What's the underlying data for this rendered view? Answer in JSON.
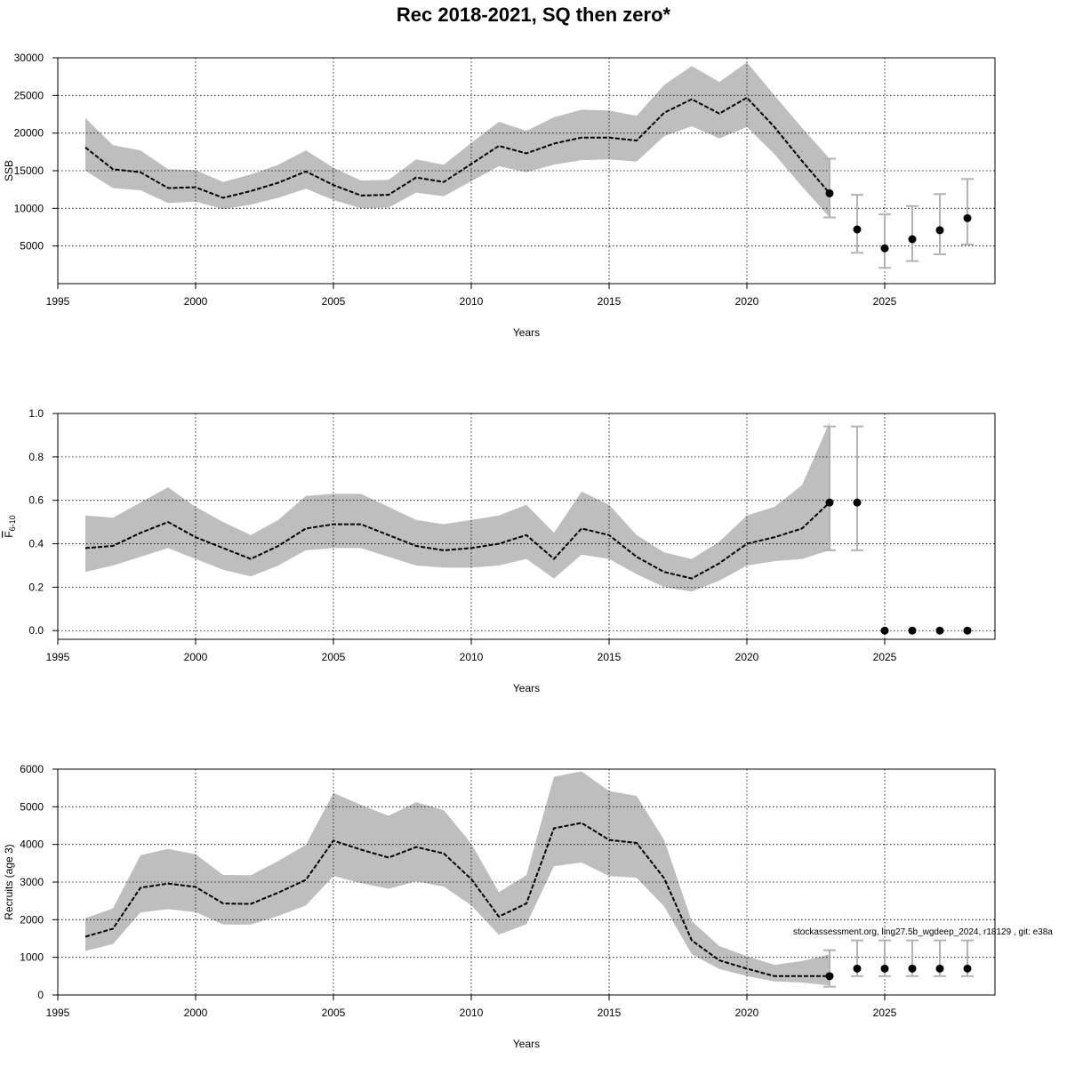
{
  "title": "Rec 2018-2021, SQ then zero*",
  "footnote": "stockassessment.org, ling27.5b_wgdeep_2024, r18129 , git: e38a",
  "colors": {
    "band": "#bebebe",
    "line": "#000000",
    "grid": "#000000",
    "errorbar": "#b3b3b3",
    "point": "#000000"
  },
  "chart_data": [
    {
      "type": "line",
      "ylabel": "SSB",
      "xlabel": "Years",
      "xlim": [
        1995,
        2029
      ],
      "ylim": [
        0,
        30000
      ],
      "xticks": [
        1995,
        2000,
        2005,
        2010,
        2015,
        2020,
        2025
      ],
      "yticks": [
        5000,
        10000,
        15000,
        20000,
        25000,
        30000
      ],
      "grid": true,
      "years": [
        1996,
        1997,
        1998,
        1999,
        2000,
        2001,
        2002,
        2003,
        2004,
        2005,
        2006,
        2007,
        2008,
        2009,
        2010,
        2011,
        2012,
        2013,
        2014,
        2015,
        2016,
        2017,
        2018,
        2019,
        2020,
        2021,
        2022,
        2023
      ],
      "estimate": [
        18100,
        15200,
        14800,
        12700,
        12800,
        11400,
        12300,
        13400,
        14900,
        13100,
        11700,
        11800,
        14100,
        13500,
        15900,
        18300,
        17300,
        18600,
        19400,
        19400,
        19000,
        22700,
        24500,
        22600,
        24700,
        20800,
        16300,
        12000
      ],
      "lower": [
        15000,
        12700,
        12400,
        10700,
        10900,
        9900,
        10500,
        11400,
        12600,
        11100,
        10000,
        10100,
        12100,
        11600,
        13600,
        15600,
        14800,
        15800,
        16400,
        16500,
        16200,
        19600,
        20900,
        19300,
        20800,
        17200,
        12900,
        8800
      ],
      "upper": [
        22000,
        18400,
        17700,
        15200,
        15100,
        13500,
        14500,
        15800,
        17700,
        15400,
        13700,
        13800,
        16500,
        15800,
        18700,
        21500,
        20300,
        22100,
        23100,
        23000,
        22300,
        26400,
        28900,
        26800,
        29400,
        25000,
        20700,
        16600
      ],
      "forecast": {
        "years": [
          2023,
          2024,
          2025,
          2026,
          2027,
          2028
        ],
        "median": [
          12000,
          7200,
          4700,
          5900,
          7100,
          8700
        ],
        "lower": [
          8800,
          4100,
          2100,
          3000,
          3900,
          5200
        ],
        "upper": [
          16600,
          11800,
          9200,
          10300,
          11900,
          13900
        ]
      }
    },
    {
      "type": "line",
      "ylabel_main": "F",
      "ylabel_sub": "6-10",
      "xlabel": "Years",
      "xlim": [
        1995,
        2029
      ],
      "ylim": [
        -0.04,
        1.0
      ],
      "xticks": [
        1995,
        2000,
        2005,
        2010,
        2015,
        2020,
        2025
      ],
      "yticks": [
        0.0,
        0.2,
        0.4,
        0.6,
        0.8,
        1.0
      ],
      "ytick_labels": [
        "0.0",
        "0.2",
        "0.4",
        "0.6",
        "0.8",
        "1.0"
      ],
      "grid": true,
      "years": [
        1996,
        1997,
        1998,
        1999,
        2000,
        2001,
        2002,
        2003,
        2004,
        2005,
        2006,
        2007,
        2008,
        2009,
        2010,
        2011,
        2012,
        2013,
        2014,
        2015,
        2016,
        2017,
        2018,
        2019,
        2020,
        2021,
        2022,
        2023
      ],
      "estimate": [
        0.38,
        0.39,
        0.45,
        0.5,
        0.43,
        0.38,
        0.33,
        0.39,
        0.47,
        0.49,
        0.49,
        0.44,
        0.39,
        0.37,
        0.38,
        0.4,
        0.44,
        0.33,
        0.47,
        0.44,
        0.34,
        0.27,
        0.24,
        0.31,
        0.4,
        0.43,
        0.47,
        0.59
      ],
      "lower": [
        0.27,
        0.3,
        0.34,
        0.38,
        0.33,
        0.28,
        0.25,
        0.3,
        0.37,
        0.38,
        0.38,
        0.34,
        0.3,
        0.29,
        0.29,
        0.3,
        0.33,
        0.24,
        0.35,
        0.33,
        0.26,
        0.2,
        0.18,
        0.23,
        0.3,
        0.32,
        0.33,
        0.37
      ],
      "upper": [
        0.53,
        0.52,
        0.59,
        0.66,
        0.57,
        0.5,
        0.44,
        0.51,
        0.62,
        0.63,
        0.63,
        0.57,
        0.51,
        0.49,
        0.51,
        0.53,
        0.58,
        0.45,
        0.64,
        0.58,
        0.44,
        0.36,
        0.33,
        0.41,
        0.53,
        0.57,
        0.67,
        0.96
      ],
      "forecast": {
        "years": [
          2023,
          2024,
          2025,
          2026,
          2027,
          2028
        ],
        "median": [
          0.59,
          0.59,
          0.0,
          0.0,
          0.0,
          0.0
        ],
        "lower": [
          0.37,
          0.37,
          null,
          null,
          null,
          null
        ],
        "upper": [
          0.94,
          0.94,
          null,
          null,
          null,
          null
        ]
      }
    },
    {
      "type": "line",
      "ylabel": "Recruits (age 3)",
      "xlabel": "Years",
      "xlim": [
        1995,
        2029
      ],
      "ylim": [
        0,
        6000
      ],
      "xticks": [
        1995,
        2000,
        2005,
        2010,
        2015,
        2020,
        2025
      ],
      "yticks": [
        0,
        1000,
        2000,
        3000,
        4000,
        5000,
        6000
      ],
      "grid": true,
      "years": [
        1996,
        1997,
        1998,
        1999,
        2000,
        2001,
        2002,
        2003,
        2004,
        2005,
        2006,
        2007,
        2008,
        2009,
        2010,
        2011,
        2012,
        2013,
        2014,
        2015,
        2016,
        2017,
        2018,
        2019,
        2020,
        2021,
        2022,
        2023
      ],
      "estimate": [
        1550,
        1760,
        2850,
        2960,
        2870,
        2430,
        2420,
        2720,
        3060,
        4100,
        3860,
        3650,
        3930,
        3760,
        3080,
        2080,
        2430,
        4430,
        4570,
        4120,
        4040,
        3100,
        1450,
        920,
        700,
        500,
        500,
        500
      ],
      "lower": [
        1170,
        1350,
        2190,
        2280,
        2200,
        1870,
        1870,
        2100,
        2380,
        3160,
        2970,
        2820,
        3020,
        2880,
        2380,
        1600,
        1880,
        3420,
        3520,
        3160,
        3110,
        2350,
        1080,
        690,
        500,
        360,
        330,
        250
      ],
      "upper": [
        2040,
        2300,
        3710,
        3880,
        3740,
        3190,
        3180,
        3560,
        3990,
        5370,
        5050,
        4760,
        5120,
        4910,
        4020,
        2730,
        3180,
        5800,
        5940,
        5420,
        5290,
        4120,
        1960,
        1300,
        1030,
        800,
        900,
        1080
      ],
      "forecast": {
        "years": [
          2023,
          2024,
          2025,
          2026,
          2027,
          2028
        ],
        "median": [
          500,
          700,
          700,
          700,
          700,
          700
        ],
        "lower": [
          220,
          500,
          500,
          500,
          500,
          500
        ],
        "upper": [
          1190,
          1450,
          1450,
          1450,
          1450,
          1450
        ]
      }
    }
  ]
}
